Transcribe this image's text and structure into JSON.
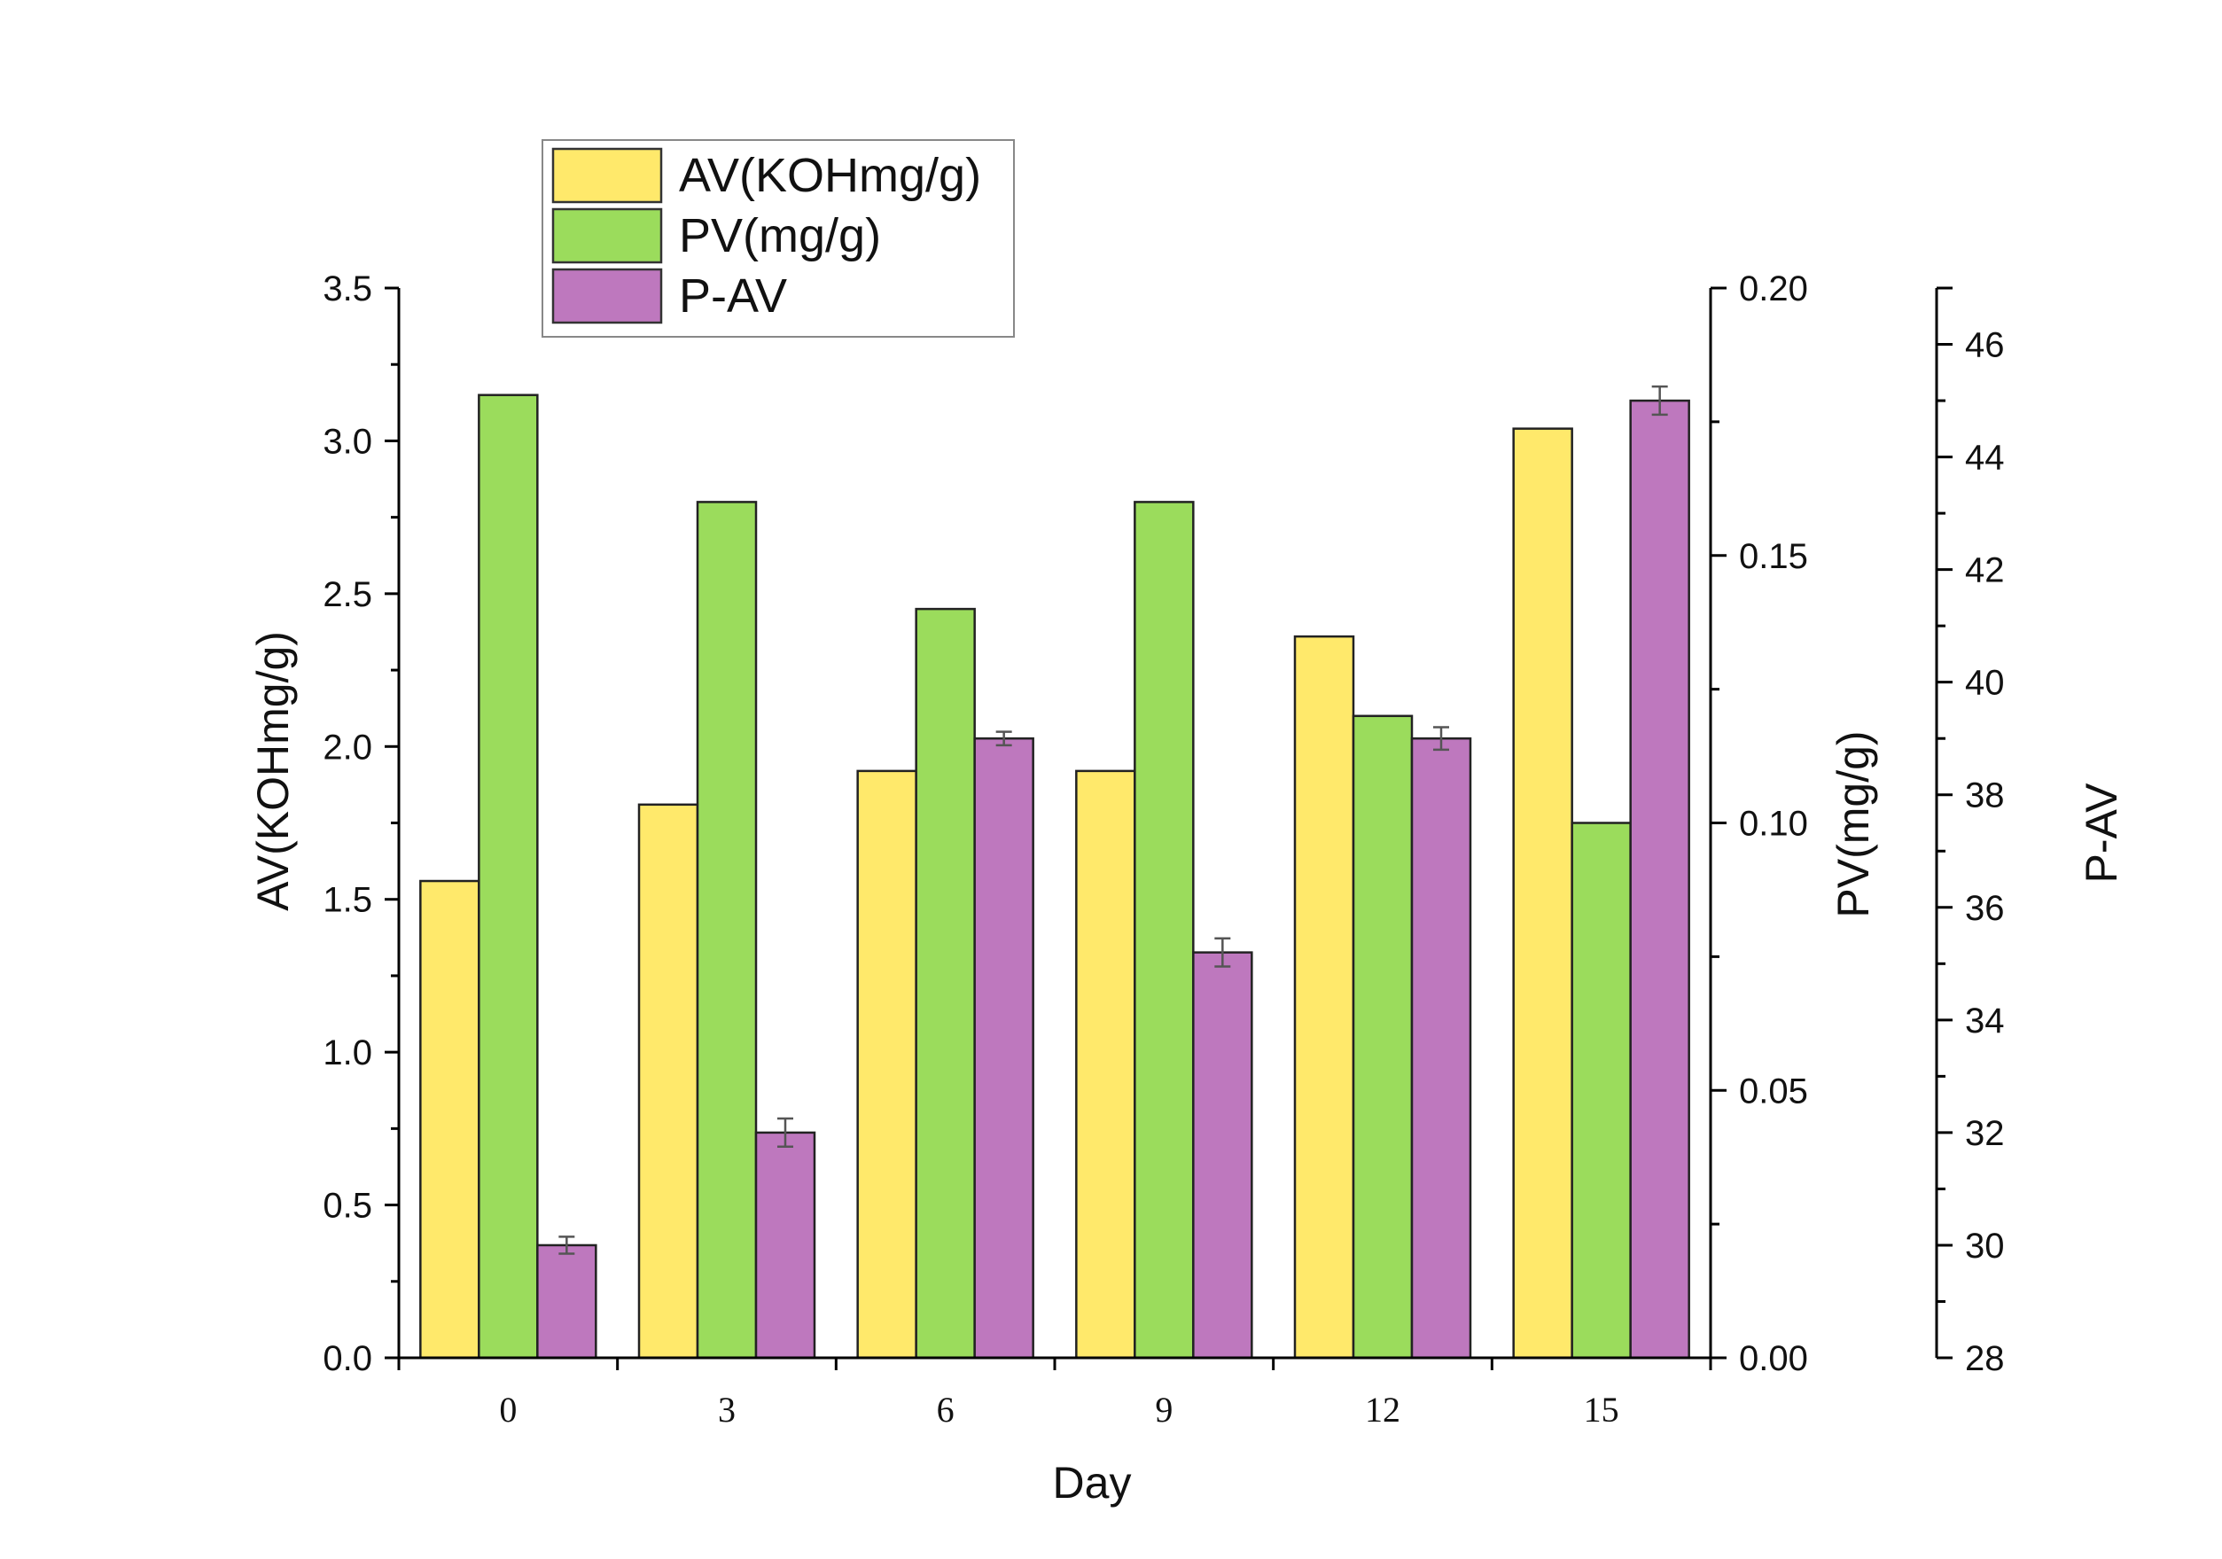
{
  "chart_data": {
    "type": "bar",
    "title": "",
    "xlabel": "Day",
    "categories": [
      "0",
      "3",
      "6",
      "9",
      "12",
      "15"
    ],
    "series": [
      {
        "name": "AV(KOHmg/g)",
        "axis": "left",
        "color": "#FFE96B",
        "values": [
          1.56,
          1.81,
          1.92,
          1.92,
          2.36,
          3.04
        ]
      },
      {
        "name": "PV(mg/g)",
        "axis": "right1",
        "color": "#9BDC5C",
        "values": [
          0.18,
          0.16,
          0.14,
          0.16,
          0.12,
          0.1
        ]
      },
      {
        "name": "P-AV",
        "axis": "right2",
        "color": "#BE78BE",
        "values": [
          30.0,
          32.0,
          39.0,
          35.2,
          39.0,
          45.0
        ],
        "errors": [
          0.15,
          0.25,
          0.12,
          0.25,
          0.2,
          0.25
        ]
      }
    ],
    "axes": {
      "left": {
        "label": "AV(KOHmg/g)",
        "range": [
          0,
          3.5
        ],
        "major": 0.5,
        "decimals": 1,
        "ticks": [
          "0.0",
          "0.5",
          "1.0",
          "1.5",
          "2.0",
          "2.5",
          "3.0",
          "3.5"
        ]
      },
      "right1": {
        "label": "PV(mg/g)",
        "range": [
          0,
          0.2
        ],
        "major": 0.05,
        "decimals": 2,
        "ticks": [
          "0.00",
          "0.05",
          "0.10",
          "0.15",
          "0.20"
        ]
      },
      "right2": {
        "label": "P-AV",
        "range": [
          28,
          47
        ],
        "major": 2,
        "decimals": 0,
        "ticks": [
          "28",
          "30",
          "32",
          "34",
          "36",
          "38",
          "40",
          "42",
          "44",
          "46"
        ]
      }
    },
    "legend": {
      "position": "top-left"
    },
    "grid": false
  }
}
